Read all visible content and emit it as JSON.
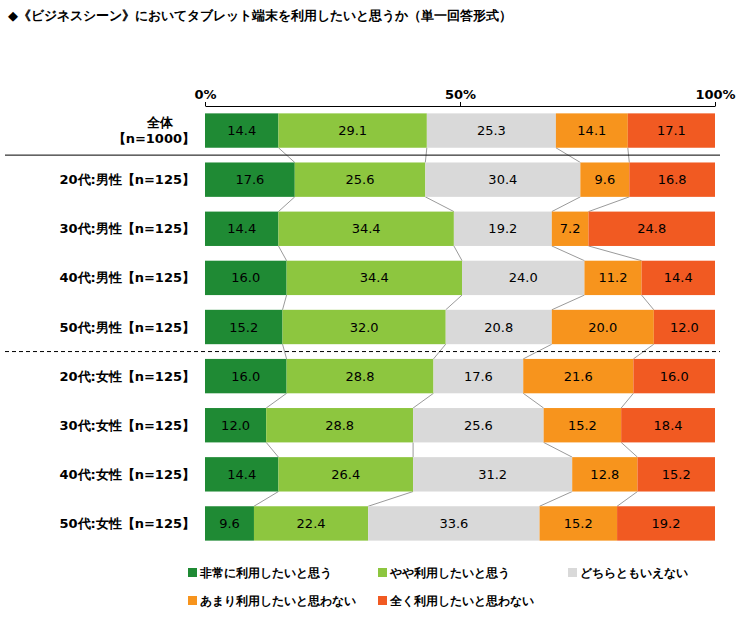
{
  "chart_data": {
    "type": "bar",
    "title": "◆《ビジネスシーン》においてタブレット端末を利用したいと思うか（単一回答形式）",
    "orientation": "horizontal",
    "stacked": true,
    "data_labels": true,
    "legend": "bottom",
    "categories": [
      "全体\n【n=1000】",
      "20代:男性【n=125】",
      "30代:男性【n=125】",
      "40代:男性【n=125】",
      "50代:男性【n=125】",
      "20代:女性【n=125】",
      "30代:女性【n=125】",
      "40代:女性【n=125】",
      "50代:女性【n=125】"
    ],
    "xlim": [
      0,
      100
    ],
    "xticks": [
      {
        "value": 0,
        "label": "0%"
      },
      {
        "value": 50,
        "label": "50%"
      },
      {
        "value": 100,
        "label": "100%"
      }
    ],
    "series": [
      {
        "name": "非常に利用したいと思う",
        "color": "#1f8a34",
        "values": [
          14.4,
          17.6,
          14.4,
          16.0,
          15.2,
          16.0,
          12.0,
          14.4,
          9.6
        ],
        "value_labels": [
          "14.4",
          "17.6",
          "14.4",
          "16.0",
          "15.2",
          "16.0",
          "12.0",
          "14.4",
          "9.6"
        ]
      },
      {
        "name": "やや利用したいと思う",
        "color": "#8dc63f",
        "values": [
          29.1,
          25.6,
          34.4,
          34.4,
          32.0,
          28.8,
          28.8,
          26.4,
          22.4
        ],
        "value_labels": [
          "29.1",
          "25.6",
          "34.4",
          "34.4",
          "32.0",
          "28.8",
          "28.8",
          "26.4",
          "22.4"
        ]
      },
      {
        "name": "どちらともいえない",
        "color": "#d9d9d9",
        "values": [
          25.3,
          30.4,
          19.2,
          24.0,
          20.8,
          17.6,
          25.6,
          31.2,
          33.6
        ],
        "value_labels": [
          "25.3",
          "30.4",
          "19.2",
          "24.0",
          "20.8",
          "17.6",
          "25.6",
          "31.2",
          "33.6"
        ]
      },
      {
        "name": "あまり利用したいと思わない",
        "color": "#f7941d",
        "values": [
          14.1,
          9.6,
          7.2,
          11.2,
          20.0,
          21.6,
          15.2,
          12.8,
          15.2
        ],
        "value_labels": [
          "14.1",
          "9.6",
          "7.2",
          "11.2",
          "20.0",
          "21.6",
          "15.2",
          "12.8",
          "15.2"
        ]
      },
      {
        "name": "全く利用したいと思わない",
        "color": "#f15a22",
        "values": [
          17.1,
          16.8,
          24.8,
          14.4,
          12.0,
          16.0,
          18.4,
          15.2,
          19.2
        ],
        "value_labels": [
          "17.1",
          "16.8",
          "24.8",
          "14.4",
          "12.0",
          "16.0",
          "18.4",
          "15.2",
          "19.2"
        ]
      }
    ]
  }
}
